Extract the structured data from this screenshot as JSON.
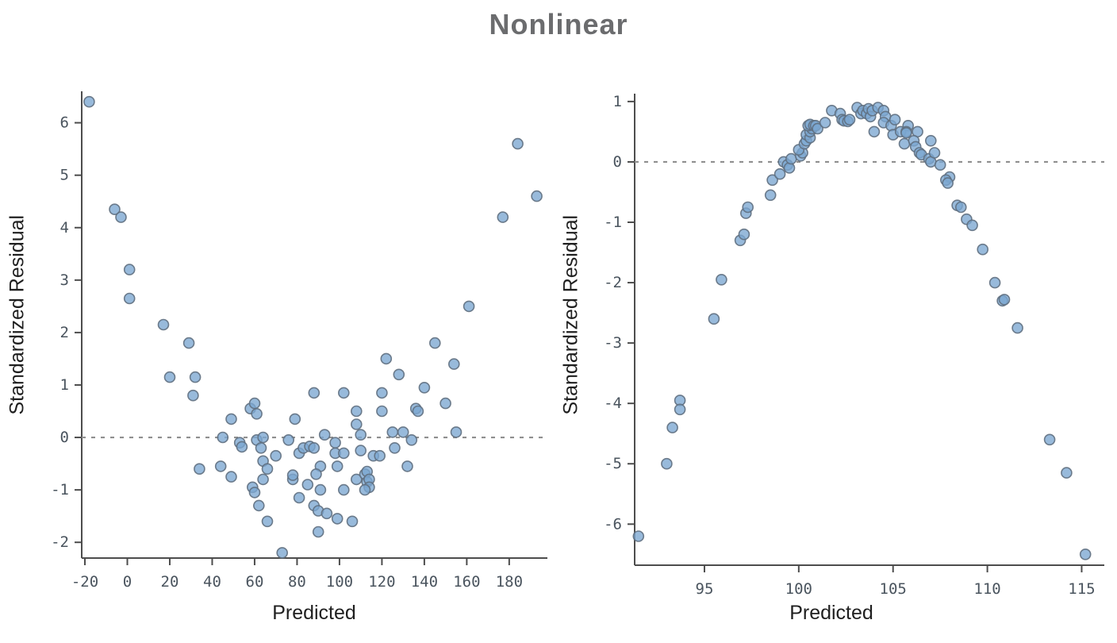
{
  "page_title": "Nonlinear",
  "colors": {
    "title": "#6b6c6e",
    "axis_line": "#4d4d4d",
    "tick_text": "#4a545e",
    "zero_line": "#8f8f8f",
    "point_fill": "#7ba7d1",
    "point_stroke": "#5f6f80"
  },
  "chart_data": [
    {
      "type": "scatter",
      "title": "Nonlinear",
      "xlabel": "Predicted",
      "ylabel": "Standardized Residual",
      "xlim": [
        -21.5,
        198
      ],
      "ylim": [
        -2.3,
        6.6
      ],
      "xticks": [
        -20,
        0,
        20,
        40,
        60,
        80,
        100,
        120,
        140,
        160,
        180
      ],
      "yticks": [
        -2,
        -1,
        0,
        1,
        2,
        3,
        4,
        5,
        6
      ],
      "zero_line": 0,
      "grid": false,
      "legend": "none",
      "points": [
        [
          -18,
          6.4
        ],
        [
          -6,
          4.35
        ],
        [
          -3,
          4.2
        ],
        [
          1,
          3.2
        ],
        [
          1,
          2.65
        ],
        [
          17,
          2.15
        ],
        [
          29,
          1.8
        ],
        [
          20,
          1.15
        ],
        [
          32,
          1.15
        ],
        [
          31,
          0.8
        ],
        [
          184,
          5.6
        ],
        [
          193,
          4.6
        ],
        [
          177,
          4.2
        ],
        [
          161,
          2.5
        ],
        [
          49,
          0.35
        ],
        [
          58,
          0.55
        ],
        [
          60,
          0.65
        ],
        [
          61,
          0.45
        ],
        [
          45,
          0
        ],
        [
          53,
          -0.1
        ],
        [
          54,
          -0.18
        ],
        [
          61,
          -0.05
        ],
        [
          63,
          -0.2
        ],
        [
          64,
          0
        ],
        [
          76,
          -0.05
        ],
        [
          79,
          0.35
        ],
        [
          81,
          -0.3
        ],
        [
          83,
          -0.2
        ],
        [
          86,
          -0.17
        ],
        [
          70,
          -0.35
        ],
        [
          64,
          -0.45
        ],
        [
          66,
          -0.6
        ],
        [
          34,
          -0.6
        ],
        [
          44,
          -0.55
        ],
        [
          49,
          -0.75
        ],
        [
          64,
          -0.8
        ],
        [
          78,
          -0.8
        ],
        [
          78,
          -0.72
        ],
        [
          85,
          -0.9
        ],
        [
          59,
          -0.95
        ],
        [
          60,
          -1.05
        ],
        [
          81,
          -1.15
        ],
        [
          62,
          -1.3
        ],
        [
          66,
          -1.6
        ],
        [
          73,
          -2.2
        ],
        [
          145,
          1.8
        ],
        [
          122,
          1.5
        ],
        [
          128,
          1.2
        ],
        [
          140,
          0.95
        ],
        [
          102,
          0.85
        ],
        [
          88,
          0.85
        ],
        [
          120,
          0.85
        ],
        [
          154,
          1.4
        ],
        [
          150,
          0.65
        ],
        [
          136,
          0.55
        ],
        [
          137,
          0.5
        ],
        [
          120,
          0.5
        ],
        [
          108,
          0.5
        ],
        [
          108,
          0.25
        ],
        [
          155,
          0.1
        ],
        [
          93,
          0.05
        ],
        [
          110,
          0.05
        ],
        [
          125,
          0.1
        ],
        [
          130,
          0.1
        ],
        [
          134,
          -0.05
        ],
        [
          98,
          -0.1
        ],
        [
          126,
          -0.2
        ],
        [
          88,
          -0.2
        ],
        [
          98,
          -0.3
        ],
        [
          102,
          -0.3
        ],
        [
          110,
          -0.25
        ],
        [
          116,
          -0.35
        ],
        [
          119,
          -0.35
        ],
        [
          91,
          -0.55
        ],
        [
          99,
          -0.55
        ],
        [
          132,
          -0.55
        ],
        [
          89,
          -0.7
        ],
        [
          108,
          -0.8
        ],
        [
          112,
          -0.7
        ],
        [
          113,
          -0.65
        ],
        [
          113,
          -0.85
        ],
        [
          114,
          -0.8
        ],
        [
          114,
          -0.95
        ],
        [
          112,
          -1
        ],
        [
          91,
          -1
        ],
        [
          102,
          -1
        ],
        [
          88,
          -1.3
        ],
        [
          90,
          -1.4
        ],
        [
          94,
          -1.45
        ],
        [
          99,
          -1.55
        ],
        [
          106,
          -1.6
        ],
        [
          90,
          -1.8
        ]
      ]
    },
    {
      "type": "scatter",
      "title": "Nonlinear",
      "xlabel": "Predicted",
      "ylabel": "Standardized Residual",
      "xlim": [
        91.3,
        116.2
      ],
      "ylim": [
        -6.68,
        1.13
      ],
      "xticks": [
        95,
        100,
        105,
        110,
        115
      ],
      "yticks": [
        -6,
        -5,
        -4,
        -3,
        -2,
        -1,
        0,
        1
      ],
      "zero_line": 0,
      "grid": false,
      "legend": "none",
      "points": [
        [
          91.5,
          -6.2
        ],
        [
          93,
          -5.0
        ],
        [
          93.7,
          -3.95
        ],
        [
          93.7,
          -4.1
        ],
        [
          93.3,
          -4.4
        ],
        [
          95.5,
          -2.6
        ],
        [
          95.9,
          -1.95
        ],
        [
          96.9,
          -1.3
        ],
        [
          97.1,
          -1.2
        ],
        [
          97.2,
          -0.85
        ],
        [
          97.3,
          -0.75
        ],
        [
          98.5,
          -0.55
        ],
        [
          98.6,
          -0.3
        ],
        [
          99,
          -0.2
        ],
        [
          99.2,
          0
        ],
        [
          99.4,
          -0.05
        ],
        [
          99.5,
          -0.1
        ],
        [
          99.6,
          0.05
        ],
        [
          100.1,
          0.1
        ],
        [
          100.2,
          0.15
        ],
        [
          100,
          0.2
        ],
        [
          100.3,
          0.3
        ],
        [
          100.4,
          0.35
        ],
        [
          100.4,
          0.45
        ],
        [
          100.6,
          0.4
        ],
        [
          100.6,
          0.5
        ],
        [
          100.7,
          0.55
        ],
        [
          100.5,
          0.6
        ],
        [
          100.6,
          0.62
        ],
        [
          100.8,
          0.6
        ],
        [
          100.9,
          0.6
        ],
        [
          101,
          0.55
        ],
        [
          101.4,
          0.65
        ],
        [
          101.75,
          0.85
        ],
        [
          102.2,
          0.8
        ],
        [
          102.3,
          0.7
        ],
        [
          102.4,
          0.68
        ],
        [
          102.6,
          0.67
        ],
        [
          102.7,
          0.7
        ],
        [
          103.1,
          0.9
        ],
        [
          103.3,
          0.8
        ],
        [
          103.4,
          0.85
        ],
        [
          103.6,
          0.8
        ],
        [
          103.7,
          0.88
        ],
        [
          103.8,
          0.75
        ],
        [
          103.9,
          0.85
        ],
        [
          104.2,
          0.9
        ],
        [
          104.5,
          0.85
        ],
        [
          104.6,
          0.75
        ],
        [
          104,
          0.5
        ],
        [
          104.5,
          0.65
        ],
        [
          104.9,
          0.6
        ],
        [
          105,
          0.45
        ],
        [
          105.1,
          0.7
        ],
        [
          105.4,
          0.5
        ],
        [
          105.8,
          0.6
        ],
        [
          105.7,
          0.5
        ],
        [
          105.7,
          0.48
        ],
        [
          106.3,
          0.5
        ],
        [
          105.6,
          0.3
        ],
        [
          106.1,
          0.35
        ],
        [
          106.2,
          0.25
        ],
        [
          106.4,
          0.15
        ],
        [
          106.5,
          0.12
        ],
        [
          107,
          0.35
        ],
        [
          106.9,
          0.05
        ],
        [
          107,
          0
        ],
        [
          107.2,
          0.15
        ],
        [
          107.5,
          -0.05
        ],
        [
          108,
          -0.25
        ],
        [
          107.8,
          -0.3
        ],
        [
          107.9,
          -0.35
        ],
        [
          108.4,
          -0.72
        ],
        [
          108.6,
          -0.75
        ],
        [
          108.9,
          -0.95
        ],
        [
          109.2,
          -1.05
        ],
        [
          109.75,
          -1.45
        ],
        [
          110.4,
          -2.0
        ],
        [
          110.8,
          -2.3
        ],
        [
          110.9,
          -2.28
        ],
        [
          111.6,
          -2.75
        ],
        [
          113.3,
          -4.6
        ],
        [
          114.2,
          -5.15
        ],
        [
          115.2,
          -6.5
        ]
      ]
    }
  ]
}
